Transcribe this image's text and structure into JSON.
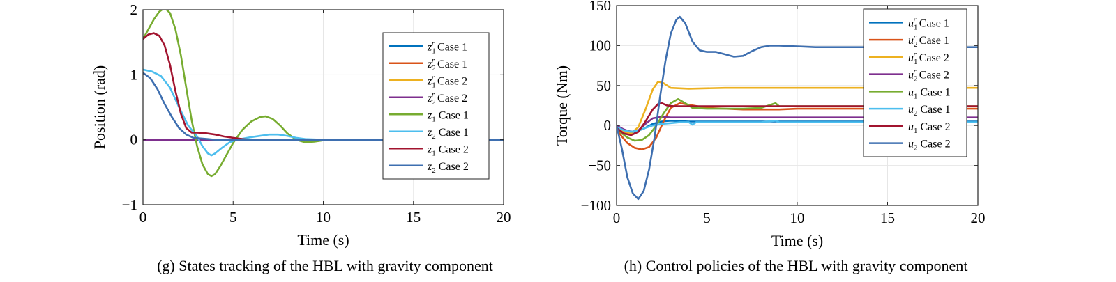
{
  "figure": {
    "panels": [
      {
        "caption": "(g) States tracking of the HBL with gravity component"
      },
      {
        "caption": "(h) Control policies of the HBL with gravity component"
      }
    ]
  },
  "chart_data": [
    {
      "type": "line",
      "title": "",
      "xlabel": "Time (s)",
      "ylabel": "Position (rad)",
      "xlim": [
        0,
        20
      ],
      "ylim": [
        -1,
        2
      ],
      "xticks": [
        "0",
        "5",
        "10",
        "15",
        "20"
      ],
      "yticks": [
        "−1",
        "0",
        "1",
        "2"
      ],
      "grid": true,
      "legend_position": "top-right",
      "series": [
        {
          "name": "z1r Case 1",
          "base": "z",
          "sub": "1",
          "sup": "r",
          "suffix": " Case 1",
          "color": "#0072BD",
          "x": [
            0,
            20
          ],
          "y": [
            0,
            0
          ]
        },
        {
          "name": "z2r Case 1",
          "base": "z",
          "sub": "2",
          "sup": "r",
          "suffix": " Case 1",
          "color": "#D95319",
          "x": [
            0,
            20
          ],
          "y": [
            0,
            0
          ]
        },
        {
          "name": "z1r Case 2",
          "base": "z",
          "sub": "1",
          "sup": "r",
          "suffix": " Case 2",
          "color": "#EDB120",
          "x": [
            0,
            20
          ],
          "y": [
            0,
            0
          ]
        },
        {
          "name": "z2r Case 2",
          "base": "z",
          "sub": "2",
          "sup": "r",
          "suffix": " Case 2",
          "color": "#7E2F8E",
          "x": [
            0,
            20
          ],
          "y": [
            0,
            0
          ]
        },
        {
          "name": "z1 Case 1",
          "base": "z",
          "sub": "1",
          "sup": "",
          "suffix": " Case 1",
          "color": "#77AC30",
          "x": [
            0,
            0.3,
            0.6,
            0.9,
            1.2,
            1.5,
            1.8,
            2.1,
            2.4,
            2.7,
            3.0,
            3.3,
            3.6,
            3.8,
            4.0,
            4.3,
            4.6,
            5.0,
            5.5,
            6.0,
            6.5,
            6.8,
            7.2,
            7.6,
            8.0,
            8.5,
            9.0,
            9.5,
            10.0,
            11,
            12,
            14,
            16,
            18,
            20
          ],
          "y": [
            1.55,
            1.7,
            1.85,
            1.97,
            2.03,
            1.95,
            1.7,
            1.3,
            0.8,
            0.3,
            -0.1,
            -0.38,
            -0.53,
            -0.56,
            -0.53,
            -0.4,
            -0.25,
            -0.05,
            0.15,
            0.28,
            0.35,
            0.36,
            0.32,
            0.22,
            0.1,
            0.0,
            -0.04,
            -0.03,
            -0.01,
            0,
            0,
            0,
            0,
            0,
            0
          ]
        },
        {
          "name": "z2 Case 1",
          "base": "z",
          "sub": "2",
          "sup": "",
          "suffix": " Case 1",
          "color": "#4DBEEE",
          "x": [
            0,
            0.5,
            1.0,
            1.5,
            2.0,
            2.5,
            3.0,
            3.3,
            3.6,
            3.8,
            4.0,
            4.4,
            4.8,
            5.2,
            5.6,
            6.0,
            6.5,
            7.0,
            7.5,
            8.0,
            8.5,
            9.0,
            10,
            12,
            14,
            16,
            18,
            20
          ],
          "y": [
            1.08,
            1.05,
            0.98,
            0.8,
            0.5,
            0.22,
            0.05,
            -0.1,
            -0.21,
            -0.24,
            -0.21,
            -0.12,
            -0.04,
            0.0,
            0.02,
            0.04,
            0.06,
            0.08,
            0.08,
            0.06,
            0.03,
            0.01,
            0,
            0,
            0,
            0,
            0,
            0
          ]
        },
        {
          "name": "z1 Case 2",
          "base": "z",
          "sub": "1",
          "sup": "",
          "suffix": " Case 2",
          "color": "#A2142F",
          "x": [
            0,
            0.3,
            0.6,
            0.9,
            1.2,
            1.5,
            1.8,
            2.1,
            2.4,
            2.7,
            3.0,
            3.5,
            4.0,
            4.5,
            5.0,
            5.5,
            6.0,
            7.0,
            8.0,
            10,
            12,
            14,
            16,
            18,
            20
          ],
          "y": [
            1.55,
            1.62,
            1.64,
            1.6,
            1.45,
            1.15,
            0.75,
            0.4,
            0.18,
            0.11,
            0.11,
            0.1,
            0.08,
            0.05,
            0.03,
            0.01,
            0.0,
            0,
            0,
            0,
            0,
            0,
            0,
            0,
            0
          ]
        },
        {
          "name": "z2 Case 2",
          "base": "z",
          "sub": "2",
          "sup": "",
          "suffix": " Case 2",
          "color": "#3E6FB0",
          "x": [
            0,
            0.4,
            0.8,
            1.2,
            1.6,
            2.0,
            2.4,
            2.8,
            3.2,
            3.6,
            4.0,
            5.0,
            6.0,
            8.0,
            10,
            12,
            14,
            16,
            18,
            20
          ],
          "y": [
            1.03,
            0.95,
            0.78,
            0.55,
            0.35,
            0.18,
            0.08,
            0.03,
            0.02,
            0.01,
            0.0,
            0,
            0,
            0,
            0,
            0,
            0,
            0,
            0,
            0
          ]
        }
      ]
    },
    {
      "type": "line",
      "title": "",
      "xlabel": "Time (s)",
      "ylabel": "Torque (Nm)",
      "xlim": [
        0,
        20
      ],
      "ylim": [
        -100,
        150
      ],
      "xticks": [
        "0",
        "5",
        "10",
        "15",
        "20"
      ],
      "yticks": [
        "−100",
        "−50",
        "0",
        "50",
        "100",
        "150"
      ],
      "grid": true,
      "legend_position": "top-right",
      "series": [
        {
          "name": "u1r Case 1",
          "base": "u",
          "sub": "1",
          "sup": "r",
          "suffix": " Case 1",
          "color": "#0072BD",
          "x": [
            0,
            0.3,
            0.6,
            1.0,
            1.5,
            2.0,
            2.5,
            3.0,
            4.0,
            6.0,
            10,
            14,
            18,
            20
          ],
          "y": [
            0,
            -4,
            -7,
            -8,
            -4,
            2,
            5,
            6,
            5,
            5,
            5,
            5,
            5,
            5
          ]
        },
        {
          "name": "u2r Case 1",
          "base": "u",
          "sub": "2",
          "sup": "r",
          "suffix": " Case 1",
          "color": "#D95319",
          "x": [
            0,
            0.3,
            0.6,
            1.0,
            1.4,
            1.8,
            2.2,
            2.6,
            3.0,
            3.5,
            4.0,
            5.0,
            6.0,
            7.0,
            8.0,
            9.0,
            10,
            12,
            14,
            16,
            18,
            20
          ],
          "y": [
            -5,
            -14,
            -22,
            -28,
            -30,
            -27,
            -15,
            5,
            22,
            28,
            26,
            22,
            21,
            20,
            20,
            20,
            21,
            21,
            21,
            21,
            21,
            21
          ]
        },
        {
          "name": "u1r Case 2",
          "base": "u",
          "sub": "1",
          "sup": "r",
          "suffix": " Case 2",
          "color": "#EDB120",
          "x": [
            0,
            0.4,
            0.8,
            1.2,
            1.6,
            2.0,
            2.3,
            2.6,
            3.0,
            4.0,
            6.0,
            10,
            14,
            18,
            20
          ],
          "y": [
            0,
            -8,
            -10,
            -2,
            20,
            45,
            55,
            53,
            47,
            46,
            47,
            47,
            47,
            47,
            47
          ]
        },
        {
          "name": "u2r Case 2",
          "base": "u",
          "sub": "2",
          "sup": "r",
          "suffix": " Case 2",
          "color": "#7E2F8E",
          "x": [
            0,
            0.4,
            0.8,
            1.2,
            1.6,
            2.0,
            2.5,
            3.0,
            4.0,
            6.0,
            10,
            14,
            18,
            20
          ],
          "y": [
            0,
            -5,
            -8,
            -6,
            2,
            9,
            11,
            10,
            10,
            10,
            10,
            10,
            10,
            10
          ]
        },
        {
          "name": "u1 Case 1",
          "base": "u",
          "sub": "1",
          "sup": "",
          "suffix": " Case 1",
          "color": "#77AC30",
          "x": [
            0,
            0.3,
            0.6,
            1.0,
            1.4,
            1.8,
            2.2,
            2.6,
            3.0,
            3.4,
            3.8,
            4.2,
            5.0,
            6.0,
            7.0,
            8.0,
            8.8,
            9.0,
            10,
            12,
            14,
            16,
            18,
            20
          ],
          "y": [
            -3,
            -10,
            -15,
            -19,
            -18,
            -12,
            0,
            15,
            28,
            33,
            28,
            22,
            21,
            21,
            21,
            22,
            28,
            24,
            24,
            24,
            24,
            24,
            24,
            24
          ]
        },
        {
          "name": "u2 Case 1",
          "base": "u",
          "sub": "2",
          "sup": "",
          "suffix": " Case 1",
          "color": "#4DBEEE",
          "x": [
            0,
            0.4,
            0.8,
            1.2,
            1.6,
            2.0,
            2.5,
            3.0,
            3.5,
            4.0,
            4.2,
            4.4,
            5.0,
            6.0,
            8.0,
            8.8,
            9.0,
            10,
            14,
            18,
            20
          ],
          "y": [
            -2,
            -6,
            -8,
            -6,
            -3,
            0,
            2,
            3,
            4,
            4,
            1,
            4,
            4,
            4,
            4,
            6,
            4,
            4,
            4,
            4,
            4
          ]
        },
        {
          "name": "u1 Case 2",
          "base": "u",
          "sub": "1",
          "sup": "",
          "suffix": " Case 2",
          "color": "#A2142F",
          "x": [
            0,
            0.4,
            0.8,
            1.2,
            1.6,
            2.0,
            2.3,
            2.5,
            2.8,
            3.2,
            4.0,
            6.0,
            10,
            14,
            18,
            20
          ],
          "y": [
            -3,
            -10,
            -12,
            -8,
            5,
            20,
            27,
            28,
            25,
            24,
            24,
            24,
            24,
            24,
            24,
            24
          ]
        },
        {
          "name": "u2 Case 2",
          "base": "u",
          "sub": "2",
          "sup": "",
          "suffix": " Case 2",
          "color": "#3E6FB0",
          "x": [
            0,
            0.3,
            0.6,
            0.9,
            1.2,
            1.5,
            1.8,
            2.1,
            2.4,
            2.7,
            3.0,
            3.3,
            3.5,
            3.8,
            4.2,
            4.6,
            5.0,
            5.5,
            6.0,
            6.5,
            7.0,
            7.5,
            8.0,
            8.5,
            9.0,
            10,
            11,
            12,
            13,
            14,
            15,
            16,
            17,
            18,
            19,
            20
          ],
          "y": [
            0,
            -30,
            -65,
            -85,
            -92,
            -82,
            -55,
            -15,
            35,
            80,
            115,
            132,
            136,
            128,
            105,
            94,
            92,
            92,
            89,
            86,
            87,
            93,
            98,
            100,
            100,
            99,
            98,
            98,
            98,
            98,
            98,
            98,
            98,
            98,
            98,
            98
          ]
        }
      ]
    }
  ]
}
